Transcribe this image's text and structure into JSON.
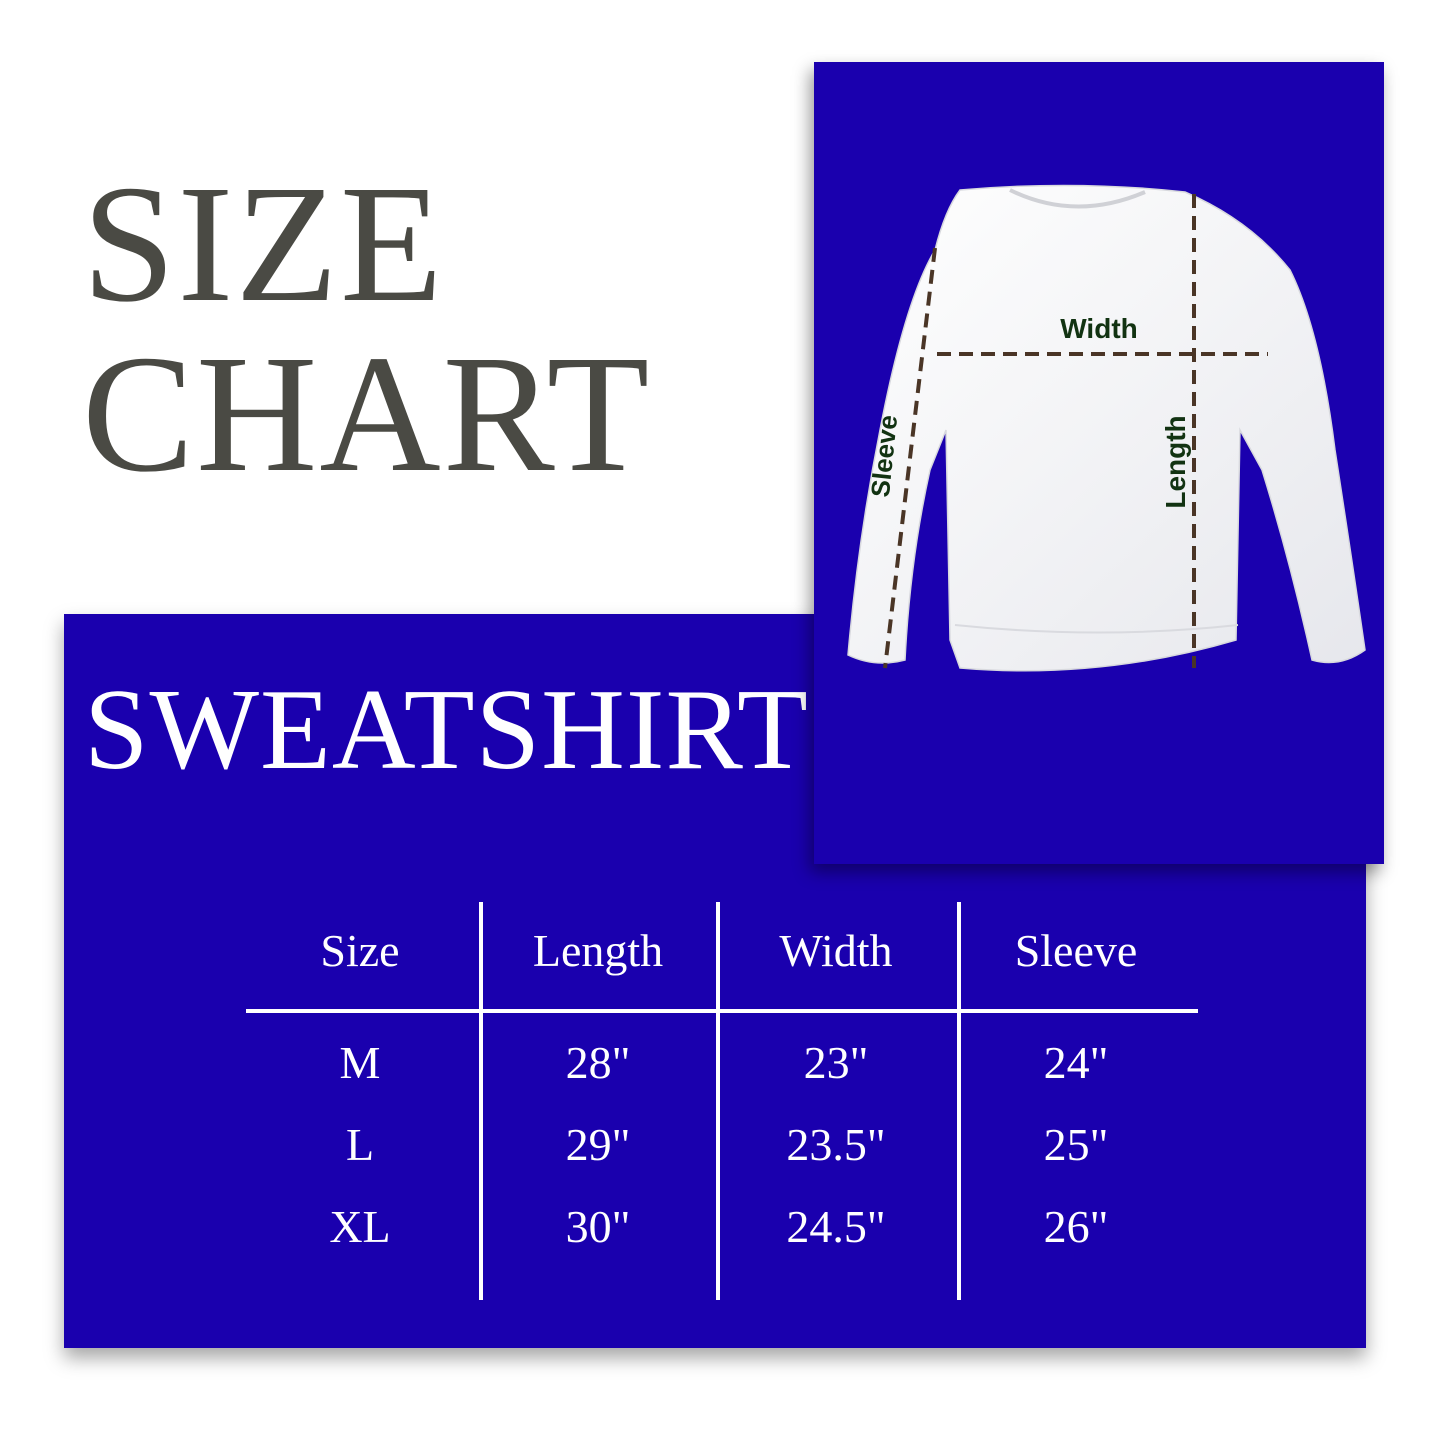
{
  "title_line1": "SIZE",
  "title_line2": "CHART",
  "product": "SWEATSHIRT",
  "diagram": {
    "width": "Width",
    "length": "Length",
    "sleeve": "Sleeve"
  },
  "colors": {
    "panel": "#1a00ae",
    "title": "#4a4a44",
    "label": "#123312",
    "dash": "#4a3526"
  },
  "table": {
    "headers": [
      "Size",
      "Length",
      "Width",
      "Sleeve"
    ],
    "rows": [
      [
        "M",
        "28\"",
        "23\"",
        "24\""
      ],
      [
        "L",
        "29\"",
        "23.5\"",
        "25\""
      ],
      [
        "XL",
        "30\"",
        "24.5\"",
        "26\""
      ]
    ]
  }
}
